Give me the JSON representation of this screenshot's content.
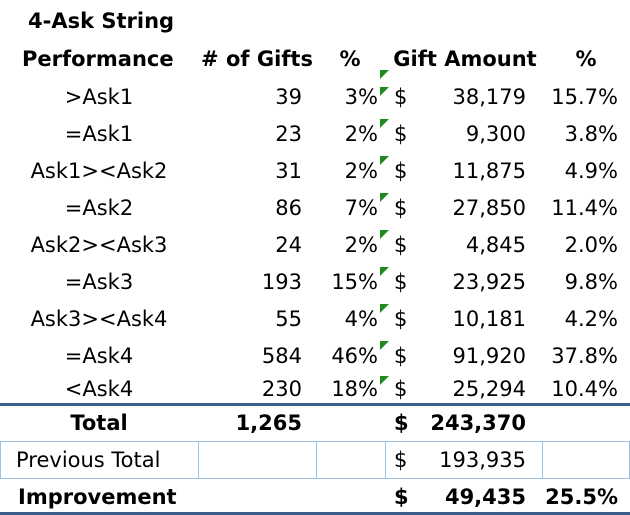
{
  "header": {
    "line1": "4-Ask String",
    "performance": "Performance",
    "gifts": "# of Gifts",
    "pct": "%",
    "amount": "Gift Amount",
    "pct2": "%"
  },
  "rows": [
    {
      "label": ">Ask1",
      "gifts": "39",
      "pct": "3%",
      "dollar": "$",
      "amount": "38,179",
      "pct2": "15.7%"
    },
    {
      "label": "=Ask1",
      "gifts": "23",
      "pct": "2%",
      "dollar": "$",
      "amount": "9,300",
      "pct2": "3.8%"
    },
    {
      "label": "Ask1><Ask2",
      "gifts": "31",
      "pct": "2%",
      "dollar": "$",
      "amount": "11,875",
      "pct2": "4.9%"
    },
    {
      "label": "=Ask2",
      "gifts": "86",
      "pct": "7%",
      "dollar": "$",
      "amount": "27,850",
      "pct2": "11.4%"
    },
    {
      "label": "Ask2><Ask3",
      "gifts": "24",
      "pct": "2%",
      "dollar": "$",
      "amount": "4,845",
      "pct2": "2.0%"
    },
    {
      "label": "=Ask3",
      "gifts": "193",
      "pct": "15%",
      "dollar": "$",
      "amount": "23,925",
      "pct2": "9.8%"
    },
    {
      "label": "Ask3><Ask4",
      "gifts": "55",
      "pct": "4%",
      "dollar": "$",
      "amount": "10,181",
      "pct2": "4.2%"
    },
    {
      "label": "=Ask4",
      "gifts": "584",
      "pct": "46%",
      "dollar": "$",
      "amount": "91,920",
      "pct2": "37.8%"
    },
    {
      "label": "<Ask4",
      "gifts": "230",
      "pct": "18%",
      "dollar": "$",
      "amount": "25,294",
      "pct2": "10.4%"
    }
  ],
  "total": {
    "label": "Total",
    "gifts": "1,265",
    "dollar": "$",
    "amount": "243,370"
  },
  "previous": {
    "label": "Previous Total",
    "dollar": "$",
    "amount": "193,935"
  },
  "improvement": {
    "label": "Improvement",
    "dollar": "$",
    "amount": "49,435",
    "pct2": "25.5%"
  },
  "colors": {
    "border_blue": "#9dc3e6",
    "border_dark": "#3a5f8a",
    "indicator_green": "#1f8a1f"
  }
}
